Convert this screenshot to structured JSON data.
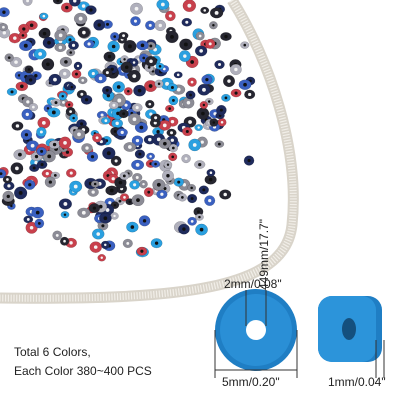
{
  "labels": {
    "length": "449mm/17.7\"",
    "hole": "2mm/0.08\"",
    "diameter": "5mm/0.20\"",
    "thickness": "1mm/0.04\""
  },
  "caption": {
    "line1": "Total 6 Colors,",
    "line2": "Each Color 380~400 PCS"
  }
}
